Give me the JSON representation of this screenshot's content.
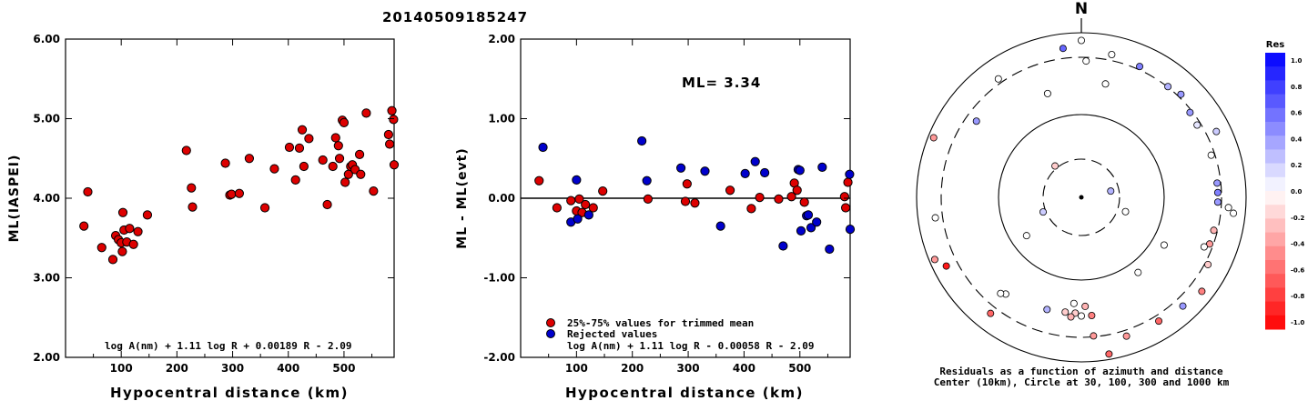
{
  "page_title": "20140509185247",
  "chart_data": [
    {
      "type": "scatter",
      "id": "ml-vs-distance",
      "ylabel": "ML(IASPEI)",
      "xlabel": "Hypocentral distance (km)",
      "xlim": [
        0,
        590
      ],
      "ylim": [
        2.0,
        6.0
      ],
      "xticks": [
        "100",
        "200",
        "300",
        "400",
        "500"
      ],
      "yticks": [
        "2.00",
        "3.00",
        "4.00",
        "5.00",
        "6.00"
      ],
      "formula": "log A(nm) + 1.11 log R + 0.00189 R - 2.09",
      "point_color": "#dd0000",
      "points": [
        [
          33,
          3.65
        ],
        [
          40,
          4.08
        ],
        [
          65,
          3.38
        ],
        [
          85,
          3.23
        ],
        [
          90,
          3.53
        ],
        [
          95,
          3.48
        ],
        [
          100,
          3.44
        ],
        [
          103,
          3.82
        ],
        [
          105,
          3.6
        ],
        [
          110,
          3.45
        ],
        [
          115,
          3.62
        ],
        [
          122,
          3.42
        ],
        [
          130,
          3.58
        ],
        [
          147,
          3.79
        ],
        [
          102,
          3.33
        ],
        [
          217,
          4.6
        ],
        [
          226,
          4.13
        ],
        [
          228,
          3.89
        ],
        [
          287,
          4.44
        ],
        [
          295,
          4.04
        ],
        [
          298,
          4.05
        ],
        [
          312,
          4.06
        ],
        [
          330,
          4.5
        ],
        [
          358,
          3.88
        ],
        [
          375,
          4.37
        ],
        [
          402,
          4.64
        ],
        [
          413,
          4.23
        ],
        [
          420,
          4.63
        ],
        [
          425,
          4.86
        ],
        [
          428,
          4.4
        ],
        [
          437,
          4.75
        ],
        [
          462,
          4.48
        ],
        [
          470,
          3.92
        ],
        [
          480,
          4.4
        ],
        [
          485,
          4.76
        ],
        [
          490,
          4.66
        ],
        [
          492,
          4.5
        ],
        [
          497,
          4.98
        ],
        [
          500,
          4.95
        ],
        [
          502,
          4.2
        ],
        [
          508,
          4.3
        ],
        [
          512,
          4.4
        ],
        [
          515,
          4.42
        ],
        [
          520,
          4.36
        ],
        [
          528,
          4.55
        ],
        [
          530,
          4.3
        ],
        [
          540,
          5.07
        ],
        [
          553,
          4.09
        ],
        [
          580,
          4.8
        ],
        [
          582,
          4.68
        ],
        [
          586,
          5.1
        ],
        [
          589,
          4.99
        ],
        [
          595,
          4.42
        ]
      ]
    },
    {
      "type": "scatter",
      "id": "residual-vs-distance",
      "ylabel": "ML - ML(evt)",
      "xlabel": "Hypocentral distance (km)",
      "xlim": [
        0,
        590
      ],
      "ylim": [
        -2.0,
        2.0
      ],
      "xticks": [
        "100",
        "200",
        "300",
        "400",
        "500"
      ],
      "yticks": [
        "-2.00",
        "-1.00",
        "0.00",
        "1.00",
        "2.00"
      ],
      "annotation": "ML= 3.34",
      "formula": "log A(nm) + 1.11 log R - 0.00058 R - 2.09",
      "legend": [
        {
          "label": "25%-75% values for trimmed mean",
          "color": "#dd0000"
        },
        {
          "label": "Rejected values",
          "color": "#0000cc"
        }
      ],
      "series": [
        {
          "name": "25%-75% values for trimmed mean",
          "color": "#dd0000",
          "points": [
            [
              33,
              0.22
            ],
            [
              65,
              -0.12
            ],
            [
              90,
              -0.03
            ],
            [
              100,
              -0.16
            ],
            [
              105,
              -0.01
            ],
            [
              110,
              -0.18
            ],
            [
              116,
              -0.08
            ],
            [
              130,
              -0.12
            ],
            [
              147,
              0.09
            ],
            [
              228,
              -0.01
            ],
            [
              295,
              -0.04
            ],
            [
              298,
              0.18
            ],
            [
              312,
              -0.06
            ],
            [
              375,
              0.1
            ],
            [
              413,
              -0.13
            ],
            [
              428,
              0.01
            ],
            [
              462,
              -0.01
            ],
            [
              485,
              0.02
            ],
            [
              490,
              0.19
            ],
            [
              495,
              0.1
            ],
            [
              508,
              -0.05
            ],
            [
              580,
              0.02
            ],
            [
              582,
              -0.12
            ],
            [
              586,
              0.2
            ]
          ]
        },
        {
          "name": "Rejected values",
          "color": "#0000cc",
          "points": [
            [
              40,
              0.64
            ],
            [
              90,
              -0.3
            ],
            [
              100,
              0.23
            ],
            [
              102,
              -0.26
            ],
            [
              122,
              -0.21
            ],
            [
              217,
              0.72
            ],
            [
              226,
              0.22
            ],
            [
              287,
              0.38
            ],
            [
              330,
              0.34
            ],
            [
              358,
              -0.35
            ],
            [
              402,
              0.31
            ],
            [
              420,
              0.46
            ],
            [
              437,
              0.32
            ],
            [
              470,
              -0.6
            ],
            [
              497,
              0.36
            ],
            [
              500,
              0.35
            ],
            [
              502,
              -0.41
            ],
            [
              512,
              -0.22
            ],
            [
              515,
              -0.21
            ],
            [
              520,
              -0.37
            ],
            [
              530,
              -0.3
            ],
            [
              540,
              0.39
            ],
            [
              553,
              -0.64
            ],
            [
              589,
              0.3
            ],
            [
              595,
              -0.39
            ]
          ]
        }
      ]
    },
    {
      "type": "scatter",
      "id": "residual-azimuth-map",
      "north_label": "N",
      "caption_line1": "Residuals as a function of azimuth and distance",
      "caption_line2": "Center (10km), Circle at 30, 100, 300 and 1000 km",
      "colorbar_title": "Res",
      "colorbar_ticks": [
        "1.0",
        "0.8",
        "0.6",
        "0.4",
        "0.2",
        "0.0",
        "-0.2",
        "-0.4",
        "-0.6",
        "-0.8",
        "-1.0"
      ],
      "rings_km": [
        30,
        100,
        300,
        1000
      ],
      "stations_polar": [
        [
          2,
          100,
          0.0
        ],
        [
          12,
          85,
          0.0
        ],
        [
          342,
          80,
          0.0
        ],
        [
          120,
          70,
          0.0
        ],
        [
          108,
          34,
          0.0
        ],
        [
          143,
          69,
          0.0
        ],
        [
          78,
          22,
          0.3
        ],
        [
          320,
          30,
          -0.2
        ],
        [
          249,
          30,
          0.2
        ],
        [
          235,
          49,
          0.0
        ],
        [
          353,
          110,
          0.6
        ],
        [
          12,
          107,
          0.0
        ],
        [
          24,
          105,
          0.5
        ],
        [
          38,
          103,
          0.3
        ],
        [
          44,
          105,
          0.4
        ],
        [
          52,
          101,
          0.4
        ],
        [
          58,
          100,
          0.1
        ],
        [
          64,
          110,
          0.2
        ],
        [
          72,
          100,
          0.0
        ],
        [
          84,
          100,
          0.4
        ],
        [
          88,
          100,
          0.5
        ],
        [
          92,
          100,
          0.4
        ],
        [
          94,
          108,
          0.0
        ],
        [
          96,
          112,
          0.0
        ],
        [
          104,
          100,
          -0.3
        ],
        [
          110,
          100,
          -0.4
        ],
        [
          112,
          97,
          0.0
        ],
        [
          118,
          105,
          -0.2
        ],
        [
          128,
          112,
          -0.5
        ],
        [
          137,
          109,
          0.4
        ],
        [
          148,
          107,
          -0.6
        ],
        [
          162,
          107,
          -0.4
        ],
        [
          170,
          118,
          -0.6
        ],
        [
          175,
          102,
          -0.4
        ],
        [
          178,
          80,
          -0.3
        ],
        [
          175,
          87,
          -0.5
        ],
        [
          180,
          87,
          0.0
        ],
        [
          183,
          85,
          -0.2
        ],
        [
          184,
          78,
          0.0
        ],
        [
          188,
          85,
          -0.2
        ],
        [
          185,
          88,
          -0.3
        ],
        [
          197,
          86,
          0.3
        ],
        [
          218,
          90,
          0.0
        ],
        [
          220,
          92,
          0.0
        ],
        [
          218,
          108,
          -0.6
        ],
        [
          243,
          111,
          -0.9
        ],
        [
          247,
          118,
          -0.4
        ],
        [
          262,
          108,
          0.0
        ],
        [
          292,
          119,
          -0.4
        ],
        [
          325,
          106,
          0.0
        ],
        [
          306,
          95,
          0.4
        ],
        [
          360,
          115,
          0.0
        ]
      ]
    }
  ]
}
